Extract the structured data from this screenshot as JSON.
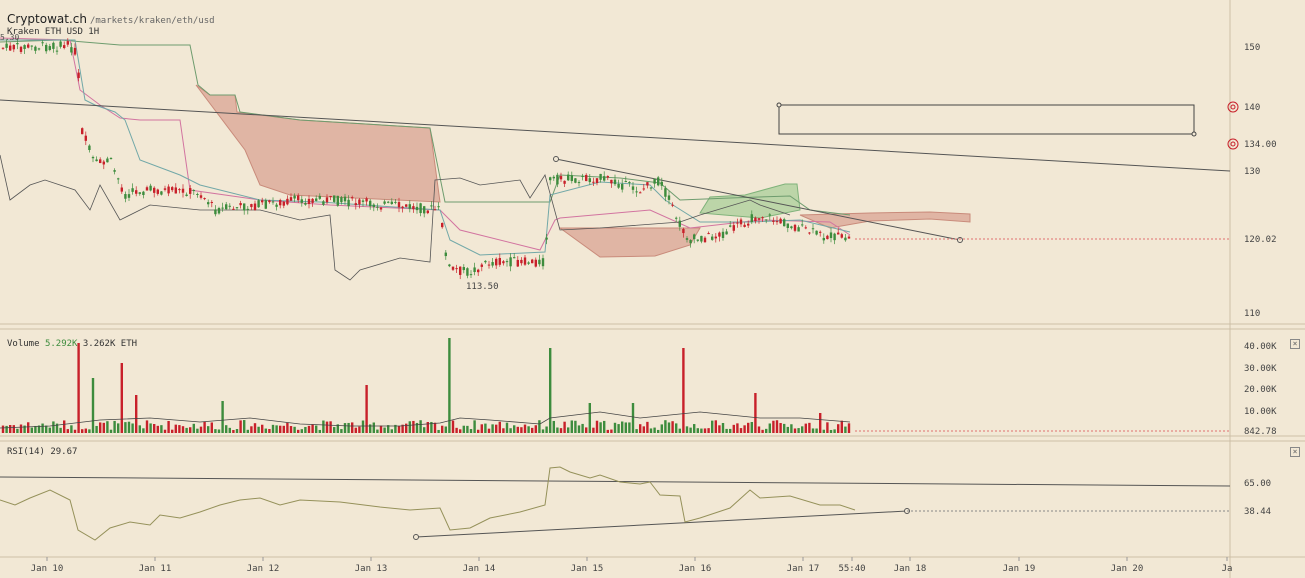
{
  "header": {
    "brand": "Cryptowat.ch",
    "path": "/markets/kraken/eth/usd",
    "market_label": "Kraken ETH USD 1H",
    "prev_close": "5.30"
  },
  "price_axis": {
    "ticks": [
      "150",
      "140",
      "134.00",
      "130",
      "120.02",
      "110"
    ],
    "low_label": "113.50"
  },
  "volume": {
    "label": "Volume",
    "value_quote": "5.292K",
    "value_base": "3.262K ETH",
    "ticks": [
      "40.00K",
      "30.00K",
      "20.00K",
      "10.00K",
      "842.78"
    ],
    "close_label": "×"
  },
  "rsi": {
    "label": "RSI(14) 29.67",
    "ticks": [
      "65.00",
      "38.44"
    ],
    "close_label": "×"
  },
  "time_axis": {
    "labels": [
      "Jan 10",
      "Jan 11",
      "Jan 12",
      "Jan 13",
      "Jan 14",
      "Jan 15",
      "Jan 16",
      "Jan 17",
      "55:40",
      "Jan 18",
      "Jan 19",
      "Jan 20",
      "Ja"
    ]
  },
  "colors": {
    "background": "#f2e8d5",
    "up": "#3d8c3d",
    "down": "#c8202a",
    "cloud_bear": "#d9a08e",
    "cloud_bull": "#a9cf98",
    "price_line": "#e07070"
  }
}
